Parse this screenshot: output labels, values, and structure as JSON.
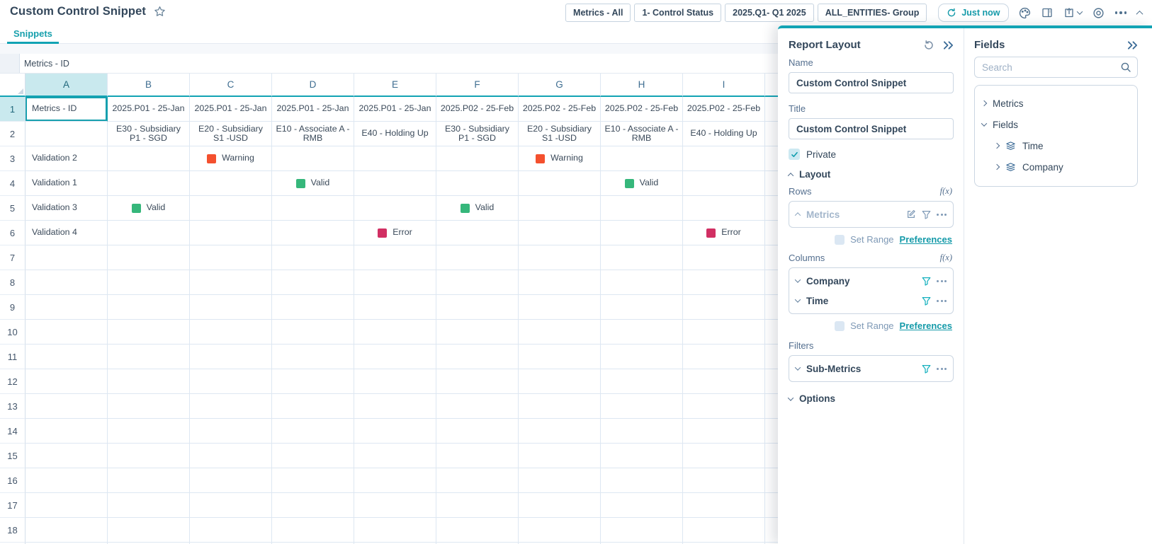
{
  "header": {
    "title": "Custom Control Snippet",
    "pills": [
      "Metrics - All",
      "1- Control Status",
      "2025.Q1- Q1 2025",
      "ALL_ENTITIES- Group"
    ],
    "refresh_label": "Just now"
  },
  "tabs": [
    {
      "label": "Snippets"
    }
  ],
  "grid": {
    "name_box": "Metrics - ID",
    "columns": [
      "A",
      "B",
      "C",
      "D",
      "E",
      "F",
      "G",
      "H",
      "I"
    ],
    "row_count": 19,
    "selected": {
      "column": "A",
      "row": 1,
      "cell": "A1"
    },
    "cells": {
      "r1": {
        "A": "Metrics - ID",
        "B": "2025.P01 - 25-Jan",
        "C": "2025.P01 - 25-Jan",
        "D": "2025.P01 - 25-Jan",
        "E": "2025.P01 - 25-Jan",
        "F": "2025.P02 - 25-Feb",
        "G": "2025.P02 - 25-Feb",
        "H": "2025.P02 - 25-Feb",
        "I": "2025.P02 - 25-Feb"
      },
      "r2": {
        "B": "E30 - Subsidiary P1 - SGD",
        "C": "E20 - Subsidiary S1 -USD",
        "D": "E10 - Associate A - RMB",
        "E": "E40 - Holding Up",
        "F": "E30 - Subsidiary P1 - SGD",
        "G": "E20 - Subsidiary S1 -USD",
        "H": "E10 - Associate A - RMB",
        "I": "E40 - Holding Up"
      },
      "r3": {
        "A": "Validation 2"
      },
      "r4": {
        "A": "Validation 1"
      },
      "r5": {
        "A": "Validation 3"
      },
      "r6": {
        "A": "Validation 4"
      }
    },
    "statuses": {
      "valid": {
        "label": "Valid",
        "color": "#36b77b"
      },
      "warning": {
        "label": "Warning",
        "color": "#f4502e"
      },
      "error": {
        "label": "Error",
        "color": "#d12f63"
      }
    },
    "chips": [
      {
        "row": 3,
        "col": "C",
        "status": "warning"
      },
      {
        "row": 3,
        "col": "G",
        "status": "warning"
      },
      {
        "row": 4,
        "col": "D",
        "status": "valid"
      },
      {
        "row": 4,
        "col": "H",
        "status": "valid"
      },
      {
        "row": 5,
        "col": "B",
        "status": "valid"
      },
      {
        "row": 5,
        "col": "F",
        "status": "valid"
      },
      {
        "row": 6,
        "col": "E",
        "status": "error"
      },
      {
        "row": 6,
        "col": "I",
        "status": "error"
      }
    ]
  },
  "report_layout": {
    "title": "Report Layout",
    "name_label": "Name",
    "name_value": "Custom Control Snippet",
    "title_label": "Title",
    "title_value": "Custom Control Snippet",
    "private_label": "Private",
    "private_checked": true,
    "layout_section": "Layout",
    "rows_label": "Rows",
    "rows_field": "Metrics",
    "fx": "f(x)",
    "set_range_label": "Set Range",
    "preferences_label": "Preferences",
    "columns_label": "Columns",
    "column_fields": [
      "Company",
      "Time"
    ],
    "filters_label": "Filters",
    "filter_fields": [
      "Sub-Metrics"
    ],
    "options_section": "Options"
  },
  "fields_panel": {
    "title": "Fields",
    "search_placeholder": "Search",
    "tree": {
      "metrics_label": "Metrics",
      "fields_label": "Fields",
      "time_label": "Time",
      "company_label": "Company"
    }
  },
  "colors": {
    "accent_teal": "#12a3b4",
    "link_teal": "#149aa9",
    "selection_fill": "#c9e9ee"
  }
}
